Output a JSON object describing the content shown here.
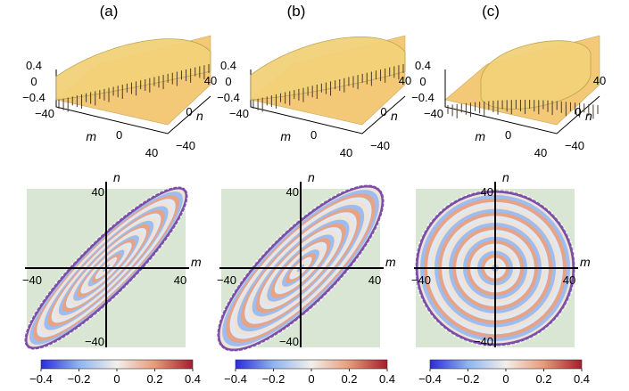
{
  "panels": [
    {
      "label": "(a)",
      "orientation": "diagonal",
      "ellipse_ratio": 0.42
    },
    {
      "label": "(b)",
      "orientation": "diagonal",
      "ellipse_ratio": 0.58
    },
    {
      "label": "(c)",
      "orientation": "circle",
      "ellipse_ratio": 1.0
    }
  ],
  "surface_plot": {
    "z_ticks": [
      "0.4",
      "0",
      "−0.4"
    ],
    "m_ticks": [
      "−40",
      "0",
      "40"
    ],
    "n_ticks": [
      "40",
      "0",
      "−40"
    ],
    "m_label": "m",
    "n_label": "n"
  },
  "density_plot": {
    "m_label": "m",
    "n_label": "n",
    "m_ticks": [
      "−40",
      "40"
    ],
    "n_ticks": [
      "40",
      "−40"
    ],
    "background": "#d9e6d4"
  },
  "colorbar": {
    "ticks": [
      "−0.4",
      "−0.2",
      "0",
      "0.2",
      "0.4"
    ],
    "min": -0.4,
    "max": 0.4,
    "colors": [
      "#2b2bd6",
      "#8fb4f0",
      "#f2f0ea",
      "#e89a7a",
      "#a31d2b"
    ]
  },
  "colors": {
    "surface": "#f2d27a",
    "floor": "#f3c977",
    "boundary": "#7b4fa8"
  }
}
